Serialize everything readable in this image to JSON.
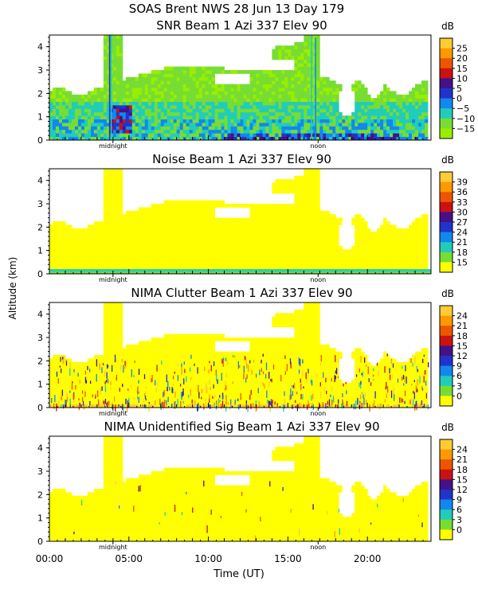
{
  "header": {
    "title": "SOAS Brent NWS  28 Jun 13 Day 179"
  },
  "figure": {
    "ylabel": "Altitude (km)",
    "xlabel": "Time (UT)",
    "x_ticks": [
      "00:00",
      "05:00",
      "10:00",
      "15:00",
      "20:00"
    ],
    "midnight_label": "midnight",
    "noon_label": "noon"
  },
  "chart_data": [
    {
      "type": "heatmap",
      "title": "SNR Beam 1 Azi 337 Elev 90",
      "xlabel": "Time (UT)",
      "ylabel": "Altitude (km)",
      "xlim": [
        0,
        24
      ],
      "ylim": [
        0,
        4.5
      ],
      "y_ticks": [
        "0",
        "1",
        "2",
        "3",
        "4"
      ],
      "colorbar": {
        "unit": "dB",
        "labels": [
          "25",
          "20",
          "15",
          "10",
          "5",
          "0",
          "−5",
          "−10",
          "−15"
        ],
        "colors": [
          "#ffcc33",
          "#ff9900",
          "#ee5500",
          "#cc1111",
          "#441188",
          "#2233cc",
          "#1188ee",
          "#22ccbb",
          "#77dd33",
          "#99ee00"
        ]
      },
      "variant": "snr"
    },
    {
      "type": "heatmap",
      "title": "Noise Beam 1 Azi 337 Elev 90",
      "xlabel": "Time (UT)",
      "ylabel": "Altitude (km)",
      "xlim": [
        0,
        24
      ],
      "ylim": [
        0,
        4.5
      ],
      "y_ticks": [
        "0",
        "1",
        "2",
        "3",
        "4"
      ],
      "colorbar": {
        "unit": "dB",
        "labels": [
          "39",
          "36",
          "33",
          "30",
          "27",
          "24",
          "21",
          "18",
          "15"
        ],
        "colors": [
          "#ffcc33",
          "#ff9900",
          "#ee5500",
          "#cc1111",
          "#441188",
          "#2233cc",
          "#1188ee",
          "#22ccbb",
          "#77dd33",
          "#ffff00"
        ]
      },
      "variant": "noise"
    },
    {
      "type": "heatmap",
      "title": "NIMA Clutter Beam 1 Azi 337 Elev 90",
      "xlabel": "Time (UT)",
      "ylabel": "Altitude (km)",
      "xlim": [
        0,
        24
      ],
      "ylim": [
        0,
        4.5
      ],
      "y_ticks": [
        "0",
        "1",
        "2",
        "3",
        "4"
      ],
      "colorbar": {
        "unit": "dB",
        "labels": [
          "24",
          "21",
          "18",
          "15",
          "12",
          "9",
          "6",
          "3",
          "0"
        ],
        "colors": [
          "#ffcc33",
          "#ff9900",
          "#ee5500",
          "#cc1111",
          "#441188",
          "#2233cc",
          "#1188ee",
          "#22ccbb",
          "#77dd33",
          "#ffff00"
        ]
      },
      "variant": "clutter"
    },
    {
      "type": "heatmap",
      "title": "NIMA Unidentified Sig Beam 1 Azi 337 Elev 90",
      "xlabel": "Time (UT)",
      "ylabel": "Altitude (km)",
      "xlim": [
        0,
        24
      ],
      "ylim": [
        0,
        4.5
      ],
      "y_ticks": [
        "0",
        "1",
        "2",
        "3",
        "4"
      ],
      "colorbar": {
        "unit": "dB",
        "labels": [
          "24",
          "21",
          "18",
          "15",
          "12",
          "9",
          "6",
          "3",
          "0"
        ],
        "colors": [
          "#ffcc33",
          "#ff9900",
          "#ee5500",
          "#cc1111",
          "#441188",
          "#2233cc",
          "#1188ee",
          "#22ccbb",
          "#77dd33",
          "#ffff00"
        ]
      },
      "variant": "unid"
    }
  ]
}
